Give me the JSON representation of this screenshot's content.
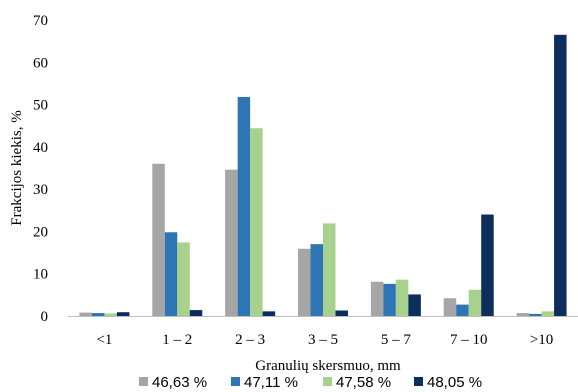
{
  "chart_data": {
    "type": "bar",
    "title": "",
    "xlabel": "Granulių skersmuo, mm",
    "ylabel": "Frakcijos kiekis, %",
    "ylim": [
      0,
      70
    ],
    "yticks": [
      0,
      10,
      20,
      30,
      40,
      50,
      60,
      70
    ],
    "grid": false,
    "legend_position": "bottom",
    "categories": [
      "<1",
      "1 – 2",
      "2 – 3",
      "3 – 5",
      "5 – 7",
      "7 – 10",
      ">10"
    ],
    "series": [
      {
        "name": "46,63 %",
        "color": "#a6a6a6",
        "values": [
          0.8,
          36.0,
          34.6,
          15.9,
          8.1,
          4.2,
          0.7
        ]
      },
      {
        "name": "47,11 %",
        "color": "#2e75b6",
        "values": [
          0.7,
          19.8,
          51.8,
          17.0,
          7.6,
          2.7,
          0.5
        ]
      },
      {
        "name": "47,58 %",
        "color": "#a9d18e",
        "values": [
          0.6,
          17.4,
          44.4,
          21.9,
          8.6,
          6.2,
          1.1
        ]
      },
      {
        "name": "48,05 %",
        "color": "#0d2e5c",
        "values": [
          0.9,
          1.4,
          1.1,
          1.3,
          5.1,
          24.0,
          66.5
        ]
      }
    ]
  }
}
